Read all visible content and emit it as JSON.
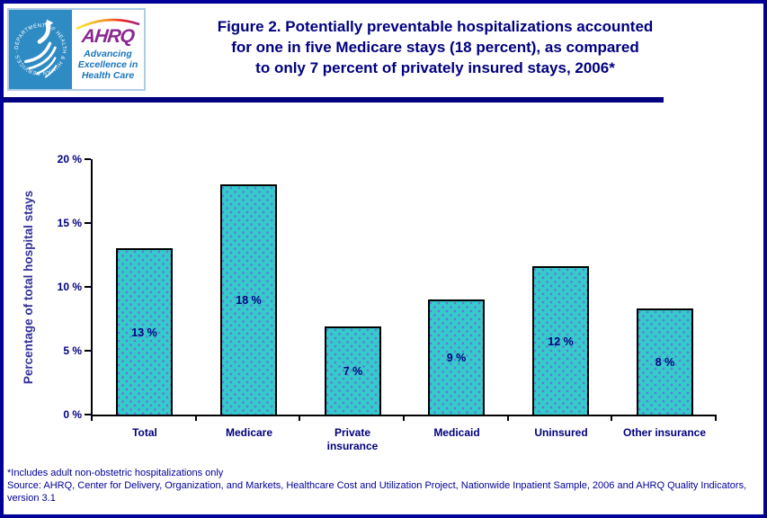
{
  "header": {
    "title_lines": [
      "Figure 2. Potentially preventable hospitalizations accounted",
      "for one in five Medicare stays (18 percent), as compared",
      "to only 7 percent of privately insured stays, 2006*"
    ],
    "logo": {
      "hhs_ring_text": "DEPARTMENT OF HEALTH & HUMAN SERVICES · USA",
      "ahrq_acronym": "AHRQ",
      "tagline_lines": [
        "Advancing",
        "Excellence in",
        "Health Care"
      ]
    }
  },
  "chart_data": {
    "type": "bar",
    "title": "Figure 2. Potentially preventable hospitalizations accounted for one in five Medicare stays (18 percent), as compared to only 7 percent of privately insured stays, 2006*",
    "categories": [
      "Total",
      "Medicare",
      "Private insurance",
      "Medicaid",
      "Uninsured",
      "Other insurance"
    ],
    "values": [
      13,
      18,
      7,
      9,
      12,
      8
    ],
    "bar_labels": [
      "13 %",
      "18 %",
      "7 %",
      "9 %",
      "12 %",
      "8 %"
    ],
    "bar_heights_pct": [
      13,
      18,
      6.9,
      9,
      11.6,
      8.3
    ],
    "xlabel": "",
    "ylabel": "Percentage of total hospital stays",
    "ylim": [
      0,
      20
    ],
    "yticks": [
      0,
      5,
      10,
      15,
      20
    ],
    "ytick_labels": [
      "0 %",
      "5 %",
      "10 %",
      "15 %",
      "20 %"
    ],
    "grid": false,
    "legend": false
  },
  "footnotes": [
    "*Includes adult non-obstetric hospitalizations only",
    "Source: AHRQ, Center for Delivery, Organization, and Markets, Healthcare Cost and Utilization Project, Nationwide Inpatient Sample, 2006 and AHRQ Quality Indicators, version 3.1"
  ],
  "colors": {
    "frame_border": "#000099",
    "divider": "#000080",
    "title_text": "#000080",
    "axis_title_text": "#333399",
    "navy_text": "#000080",
    "bar_fill": "#35CBCB",
    "bar_dot": "#6673D9",
    "bar_border": "#000000",
    "hhs_blue": "#2E8BC4",
    "ahrq_purple": "#8A2890",
    "tagline_blue": "#1B75BC",
    "logo_border": "#AECCE8"
  }
}
